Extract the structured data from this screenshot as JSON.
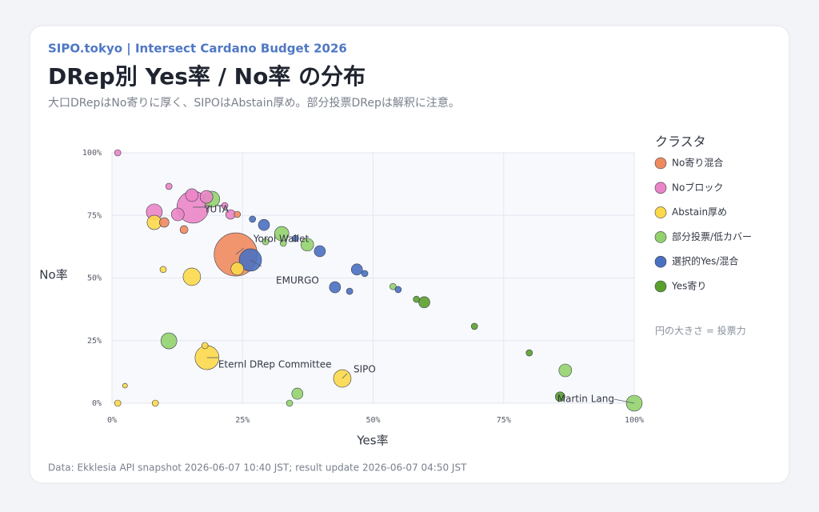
{
  "header": "SIPO.tokyo | Intersect Cardano Budget 2026",
  "title": "DRep別 Yes率 / No率 の分布",
  "subtitle": "大口DRepはNo寄りに厚く、SIPOはAbstain厚め。部分投票DRepは解釈に注意。",
  "footer": "Data: Ekklesia API snapshot 2026-06-07 10:40 JST; result update 2026-06-07 04:50 JST",
  "chart_data": {
    "type": "scatter",
    "x_label": "Yes率",
    "y_label": "No率",
    "legend_title": "クラスタ",
    "size_note": "円の大きさ = 投票力",
    "legend_position": "right",
    "grid": true,
    "xlim": [
      0,
      100
    ],
    "ylim": [
      0,
      100
    ],
    "xticks": [
      {
        "value": 0,
        "label": "0%"
      },
      {
        "value": 25,
        "label": "25%"
      },
      {
        "value": 50,
        "label": "50%"
      },
      {
        "value": 75,
        "label": "75%"
      },
      {
        "value": 100,
        "label": "100%"
      }
    ],
    "yticks": [
      {
        "value": 0,
        "label": "0%"
      },
      {
        "value": 25,
        "label": "25%"
      },
      {
        "value": 50,
        "label": "50%"
      },
      {
        "value": 75,
        "label": "75%"
      },
      {
        "value": 100,
        "label": "100%"
      }
    ],
    "series": [
      {
        "name": "No寄り混合",
        "color": "#ef8a5f",
        "x": [
          23.7,
          10.0,
          13.8,
          24.0
        ],
        "y": [
          59.4,
          72.2,
          69.3,
          75.4
        ],
        "sizes": [
          729,
          36,
          25,
          16
        ]
      },
      {
        "name": "Noブロック",
        "color": "#eb85c8",
        "x": [
          1.1,
          10.9,
          8.1,
          12.6,
          15.3,
          15.5,
          18.1,
          21.6,
          22.7
        ],
        "y": [
          100,
          86.6,
          76.4,
          75.4,
          83.1,
          78.3,
          82.4,
          78.9,
          75.4
        ],
        "sizes": [
          16,
          16,
          100,
          64,
          64,
          400,
          64,
          16,
          36
        ]
      },
      {
        "name": "Abstain厚め",
        "color": "#fcd84a",
        "x": [
          8.1,
          9.8,
          15.3,
          24.0,
          17.8,
          18.2,
          2.5,
          1.1,
          8.3,
          44.1
        ],
        "y": [
          72.2,
          53.4,
          50.5,
          53.7,
          23.0,
          18.2,
          7.0,
          0,
          0,
          9.9
        ],
        "sizes": [
          81,
          16,
          121,
          64,
          16,
          225,
          9,
          16,
          16,
          121
        ]
      },
      {
        "name": "部分投票/低カバー",
        "color": "#92d16d",
        "x": [
          19.1,
          10.9,
          32.5,
          32.8,
          29.4,
          37.4,
          35.5,
          34.0,
          53.8,
          86.8,
          100
        ],
        "y": [
          81.5,
          24.9,
          67.7,
          63.9,
          64.5,
          63.3,
          3.8,
          0,
          46.6,
          13.1,
          0
        ],
        "sizes": [
          100,
          100,
          81,
          16,
          16,
          64,
          49,
          16,
          16,
          64,
          100
        ]
      },
      {
        "name": "選択的Yes/混合",
        "color": "#4a70c2",
        "x": [
          26.5,
          26.9,
          29.1,
          35.1,
          39.8,
          42.7,
          45.5,
          46.9,
          48.4,
          54.8
        ],
        "y": [
          57.2,
          73.5,
          71.2,
          65.8,
          60.7,
          46.3,
          44.7,
          53.4,
          51.8,
          45.4
        ],
        "sizes": [
          196,
          16,
          49,
          16,
          49,
          49,
          16,
          49,
          16,
          16
        ]
      },
      {
        "name": "Yes寄り",
        "color": "#5aa02c",
        "x": [
          58.3,
          59.8,
          69.4,
          79.9,
          85.8
        ],
        "y": [
          41.5,
          40.3,
          30.7,
          20.1,
          2.6
        ],
        "sizes": [
          16,
          49,
          16,
          16,
          36
        ]
      }
    ],
    "annotations": [
      {
        "text": "YUTA",
        "x": 15.5,
        "y": 78.3
      },
      {
        "text": "Yoroi Wallet",
        "x": 23.7,
        "y": 59.4
      },
      {
        "text": "EMURGO",
        "x": 26.5,
        "y": 57.2
      },
      {
        "text": "Eternl DRep Committee",
        "x": 18.2,
        "y": 18.2
      },
      {
        "text": "SIPO",
        "x": 44.1,
        "y": 9.9
      },
      {
        "text": "Martin Lang",
        "x": 100,
        "y": 0
      }
    ]
  }
}
